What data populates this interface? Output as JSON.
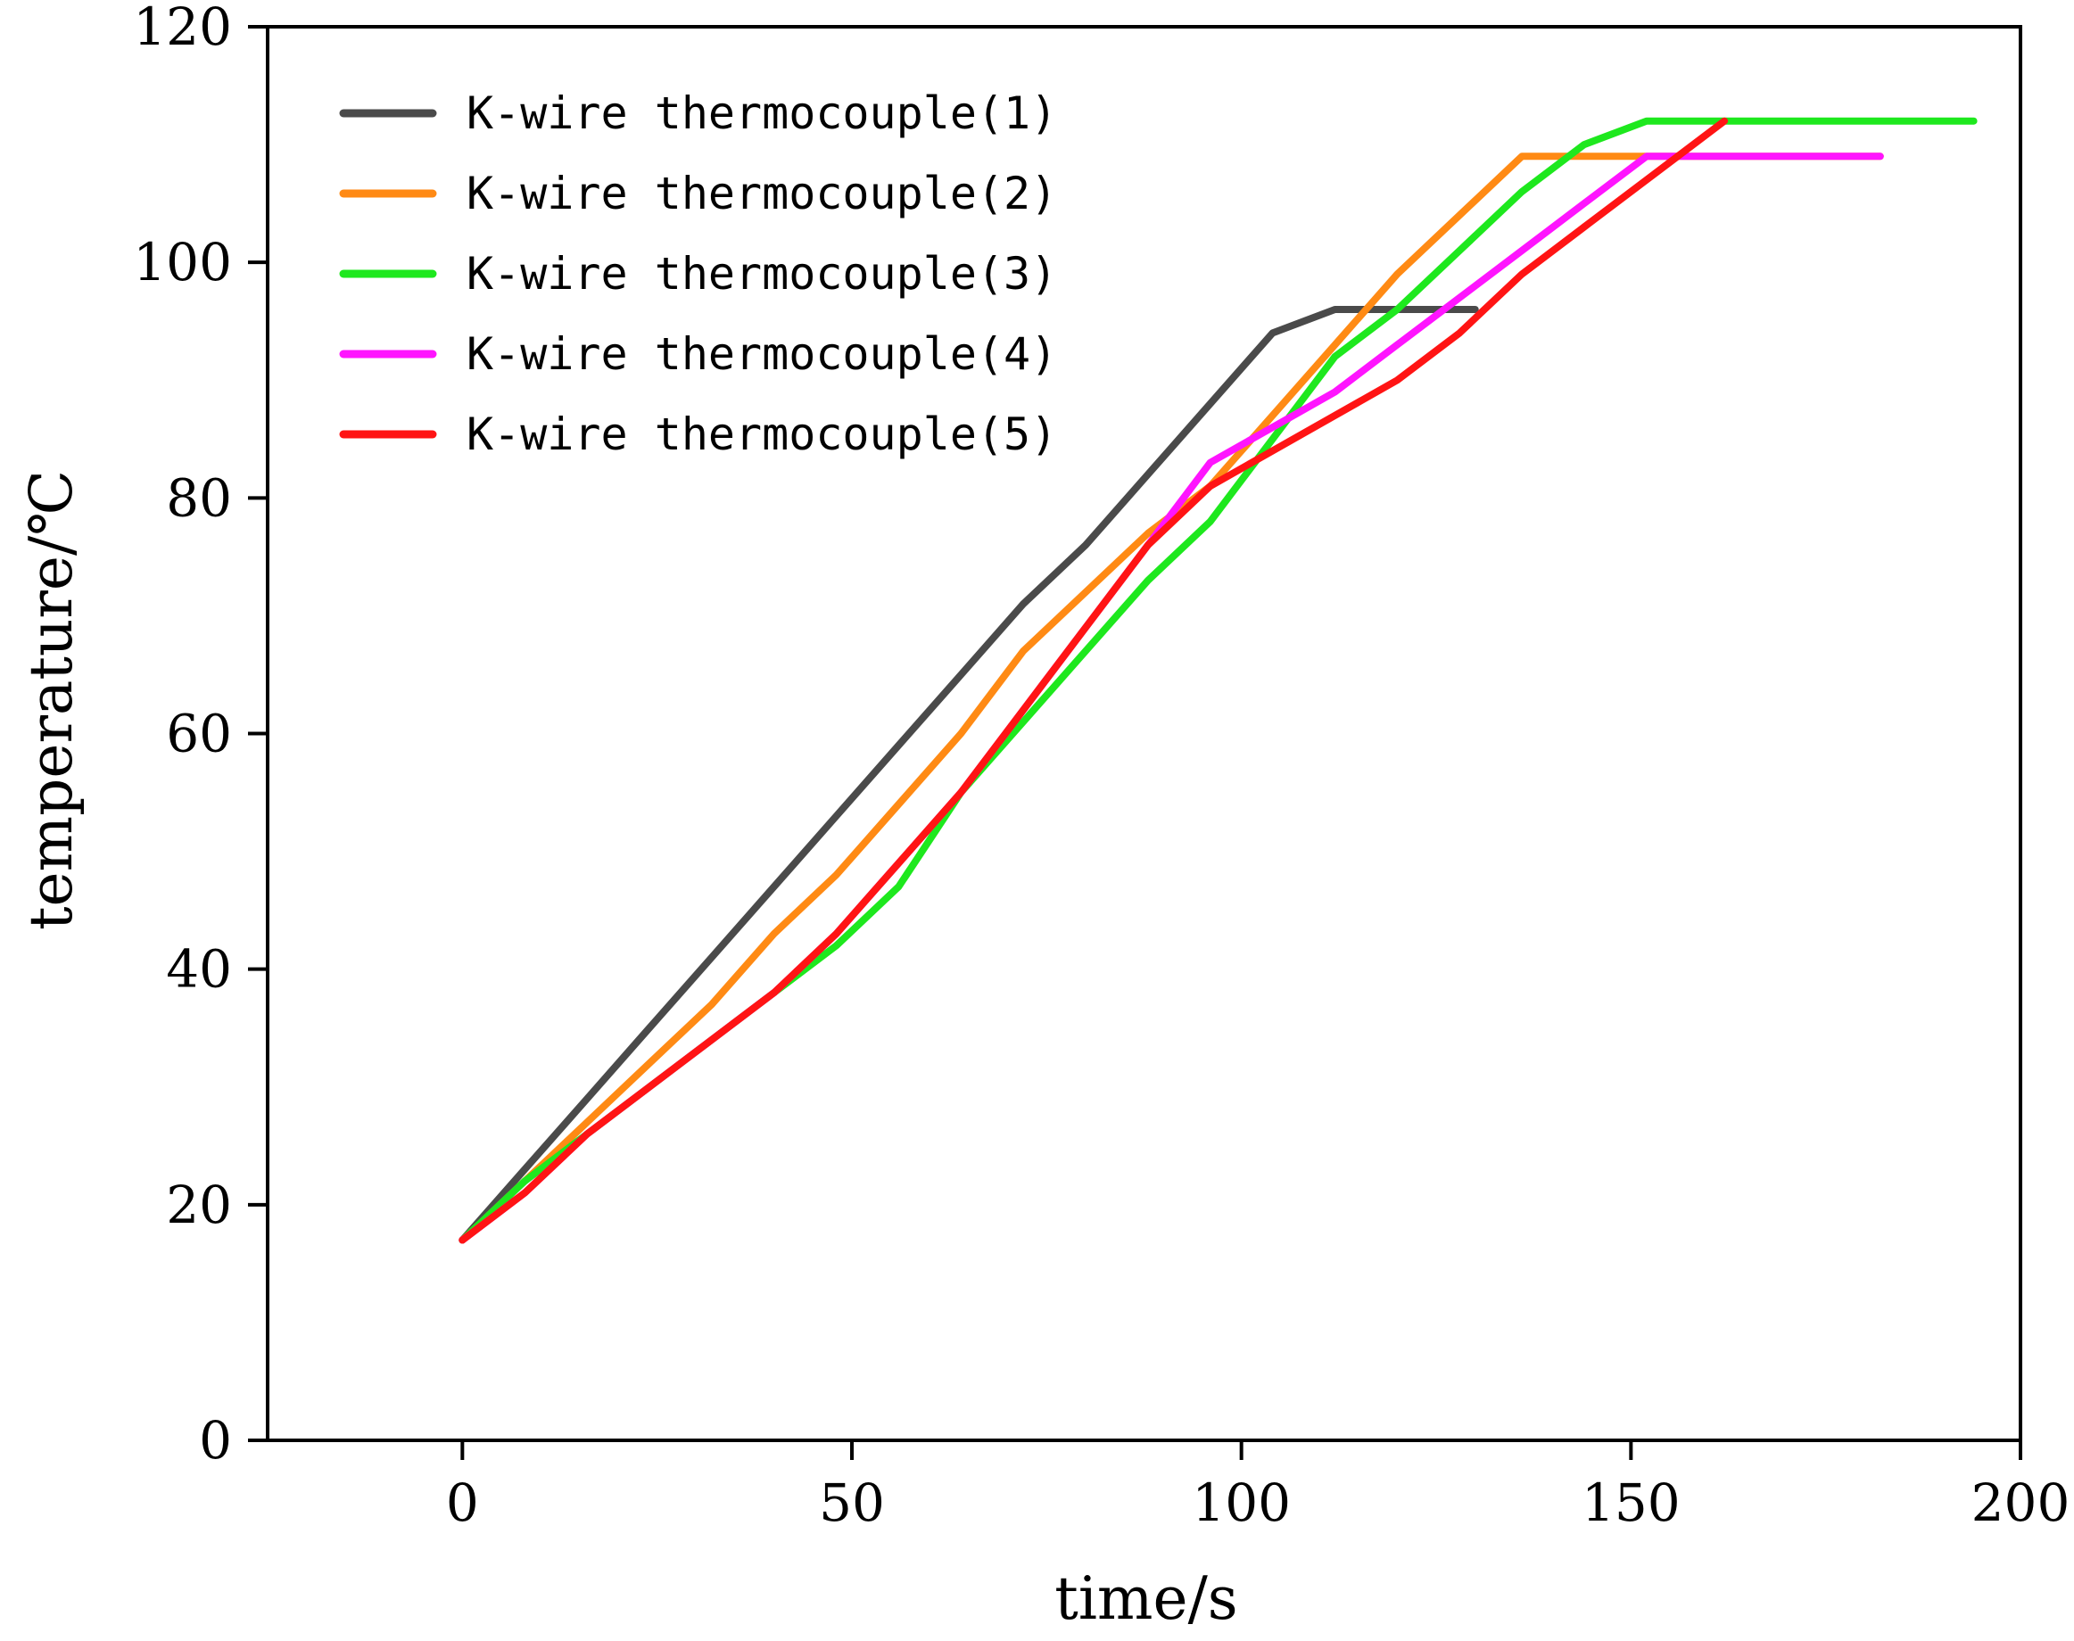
{
  "chart_data": {
    "type": "line",
    "title": "",
    "xlabel": "time/s",
    "ylabel": "temperature/℃",
    "xlim": [
      -25,
      200
    ],
    "ylim": [
      0,
      120
    ],
    "xticks": [
      0,
      50,
      100,
      150,
      200
    ],
    "yticks": [
      0,
      20,
      40,
      60,
      80,
      100,
      120
    ],
    "xtick_labels": [
      "0",
      "50",
      "100",
      "150",
      "200"
    ],
    "ytick_labels": [
      "0",
      "20",
      "40",
      "60",
      "80",
      "100",
      "120"
    ],
    "grid": false,
    "legend_position": "top-left",
    "series": [
      {
        "name": "K-wire thermocouple(1)",
        "color": "#4a4a4a",
        "points": [
          [
            0,
            17
          ],
          [
            8,
            23
          ],
          [
            16,
            29
          ],
          [
            24,
            35
          ],
          [
            32,
            41
          ],
          [
            40,
            47
          ],
          [
            48,
            53
          ],
          [
            56,
            59
          ],
          [
            64,
            65
          ],
          [
            72,
            71
          ],
          [
            80,
            76
          ],
          [
            88,
            82
          ],
          [
            96,
            88
          ],
          [
            104,
            94
          ],
          [
            112,
            96
          ],
          [
            120,
            96
          ],
          [
            130,
            96
          ]
        ]
      },
      {
        "name": "K-wire thermocouple(2)",
        "color": "#ff8a14",
        "points": [
          [
            0,
            17
          ],
          [
            8,
            22
          ],
          [
            16,
            27
          ],
          [
            24,
            32
          ],
          [
            32,
            37
          ],
          [
            40,
            43
          ],
          [
            48,
            48
          ],
          [
            56,
            54
          ],
          [
            64,
            60
          ],
          [
            72,
            67
          ],
          [
            80,
            72
          ],
          [
            88,
            77
          ],
          [
            96,
            81
          ],
          [
            104,
            87
          ],
          [
            112,
            93
          ],
          [
            120,
            99
          ],
          [
            128,
            104
          ],
          [
            136,
            109
          ],
          [
            146,
            109
          ],
          [
            158,
            109
          ],
          [
            170,
            109
          ],
          [
            182,
            109
          ]
        ]
      },
      {
        "name": "K-wire thermocouple(3)",
        "color": "#1ee81e",
        "points": [
          [
            0,
            17
          ],
          [
            8,
            22
          ],
          [
            16,
            26
          ],
          [
            24,
            30
          ],
          [
            32,
            34
          ],
          [
            40,
            38
          ],
          [
            48,
            42
          ],
          [
            56,
            47
          ],
          [
            64,
            55
          ],
          [
            72,
            61
          ],
          [
            80,
            67
          ],
          [
            88,
            73
          ],
          [
            96,
            78
          ],
          [
            104,
            85
          ],
          [
            112,
            92
          ],
          [
            120,
            96
          ],
          [
            128,
            101
          ],
          [
            136,
            106
          ],
          [
            144,
            110
          ],
          [
            152,
            112
          ],
          [
            160,
            112
          ],
          [
            168,
            112
          ],
          [
            176,
            112
          ],
          [
            184,
            112
          ],
          [
            194,
            112
          ]
        ]
      },
      {
        "name": "K-wire thermocouple(4)",
        "color": "#ff14ff",
        "points": [
          [
            0,
            17
          ],
          [
            8,
            21
          ],
          [
            16,
            26
          ],
          [
            24,
            30
          ],
          [
            32,
            34
          ],
          [
            40,
            38
          ],
          [
            48,
            43
          ],
          [
            56,
            49
          ],
          [
            64,
            55
          ],
          [
            72,
            62
          ],
          [
            80,
            69
          ],
          [
            88,
            76
          ],
          [
            96,
            83
          ],
          [
            104,
            86
          ],
          [
            112,
            89
          ],
          [
            120,
            93
          ],
          [
            128,
            97
          ],
          [
            136,
            101
          ],
          [
            144,
            105
          ],
          [
            152,
            109
          ],
          [
            160,
            109
          ],
          [
            168,
            109
          ],
          [
            182,
            109
          ]
        ]
      },
      {
        "name": "K-wire thermocouple(5)",
        "color": "#ff1414",
        "points": [
          [
            0,
            17
          ],
          [
            8,
            21
          ],
          [
            16,
            26
          ],
          [
            24,
            30
          ],
          [
            32,
            34
          ],
          [
            40,
            38
          ],
          [
            48,
            43
          ],
          [
            56,
            49
          ],
          [
            64,
            55
          ],
          [
            72,
            62
          ],
          [
            80,
            69
          ],
          [
            88,
            76
          ],
          [
            96,
            81
          ],
          [
            104,
            84
          ],
          [
            112,
            87
          ],
          [
            120,
            90
          ],
          [
            128,
            94
          ],
          [
            136,
            99
          ],
          [
            144,
            103
          ],
          [
            152,
            107
          ],
          [
            162,
            112
          ]
        ]
      }
    ]
  }
}
